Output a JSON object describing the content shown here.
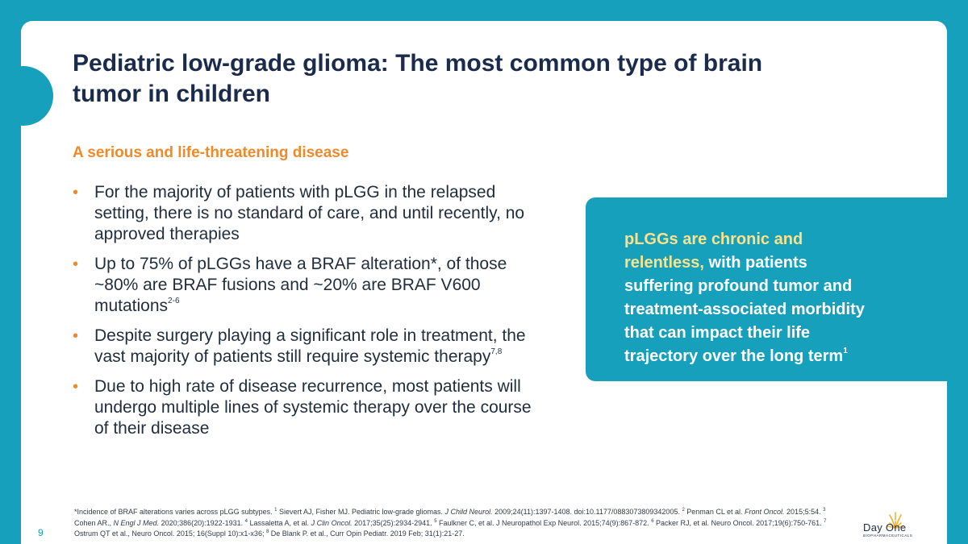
{
  "title": "Pediatric low-grade glioma: The most common type of brain tumor in children",
  "subtitle": "A serious and life-threatening disease",
  "bullet_marker": "•",
  "bullets": [
    {
      "text": "For the majority of patients with pLGG in the relapsed setting, there is no standard of care, and until recently, no approved therapies",
      "sup": ""
    },
    {
      "text": "Up to 75% of pLGGs have a BRAF alteration*, of those ~80% are BRAF fusions and ~20% are BRAF V600 mutations",
      "sup": "2-6"
    },
    {
      "text": "Despite surgery playing a significant role in treatment, the vast majority of patients still require systemic therapy",
      "sup": "7,8"
    },
    {
      "text": "Due to high rate of disease recurrence, most patients will undergo multiple lines of systemic therapy over the course of their disease",
      "sup": ""
    }
  ],
  "callout": {
    "highlight": "pLGGs are chronic and relentless,",
    "text": " with patients suffering profound tumor and treatment-associated morbidity that can impact their life trajectory over the long term",
    "sup": "1"
  },
  "footnote": {
    "p1": "*Incidence of BRAF alterations varies across pLGG subtypes. ",
    "s1": "1",
    "p2": " Sievert AJ, Fisher MJ. Pediatric low-grade gliomas. ",
    "i1": "J Child Neurol.",
    "p3": " 2009;24(11):1397-1408. doi:10.1177/0883073809342005. ",
    "s2": "2",
    "p4": " Penman CL et al. ",
    "i2": "Front Oncol.",
    "p5": " 2015;5:54. ",
    "s3": "3",
    "p6": " Cohen AR., ",
    "i3": "N Engl J Med.",
    "p7": " 2020;386(20):1922-1931.  ",
    "s4": "4",
    "p8": "  Lassaletta A, et al. ",
    "i4": "J Clin Oncol.",
    "p9": " 2017;35(25):2934-2941. ",
    "s5": "5",
    "p10": " Faulkner C, et al. J Neuropathol Exp Neurol. 2015;74(9):867-872. ",
    "s6": "6",
    "p11": " Packer RJ, et al. Neuro Oncol. 2017;19(6):750-761. ",
    "s7": "7",
    "p12": " Ostrum QT et al., Neuro Oncol. 2015; 16(Suppl 10):x1-x36; ",
    "s8": "8",
    "p13": " De Blank P. et al., Curr Opin Pediatr. 2019 Feb; 31(1):21-27."
  },
  "page_number": "9",
  "logo": {
    "name": "Day One",
    "subtitle": "BIOPHARMACEUTICALS"
  },
  "colors": {
    "teal": "#17a0bb",
    "navy": "#1a2b4c",
    "orange": "#ef8a2a",
    "callout_highlight": "#fbe28a"
  }
}
